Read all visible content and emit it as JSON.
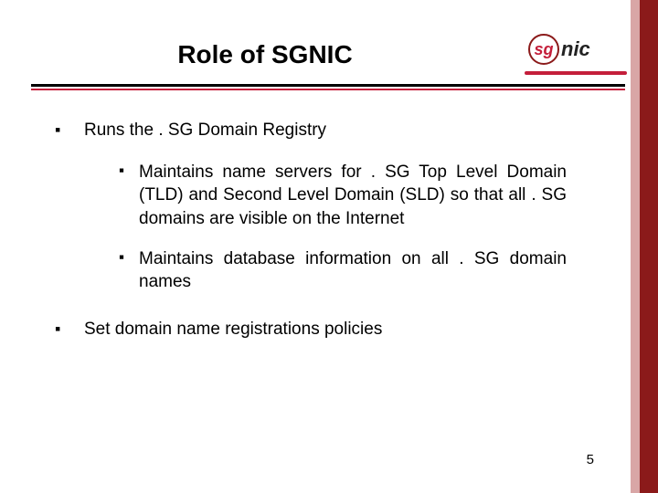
{
  "colors": {
    "accent_dark": "#8b1a1a",
    "accent_light": "#d9a6a6",
    "accent_red": "#c41e3a",
    "text": "#000000",
    "background": "#ffffff"
  },
  "logo": {
    "circle_text": "sg",
    "suffix": "nic"
  },
  "title": "Role of SGNIC",
  "bullets": [
    {
      "text": "Runs the . SG Domain Registry",
      "children": [
        {
          "text": "Maintains name servers for . SG Top Level Domain (TLD) and Second Level Domain (SLD) so that all . SG domains are visible on the Internet"
        },
        {
          "text": "Maintains database information on all . SG domain names"
        }
      ]
    },
    {
      "text": "Set domain name registrations policies",
      "children": []
    }
  ],
  "bullet_glyph": "▪",
  "page_number": "5"
}
